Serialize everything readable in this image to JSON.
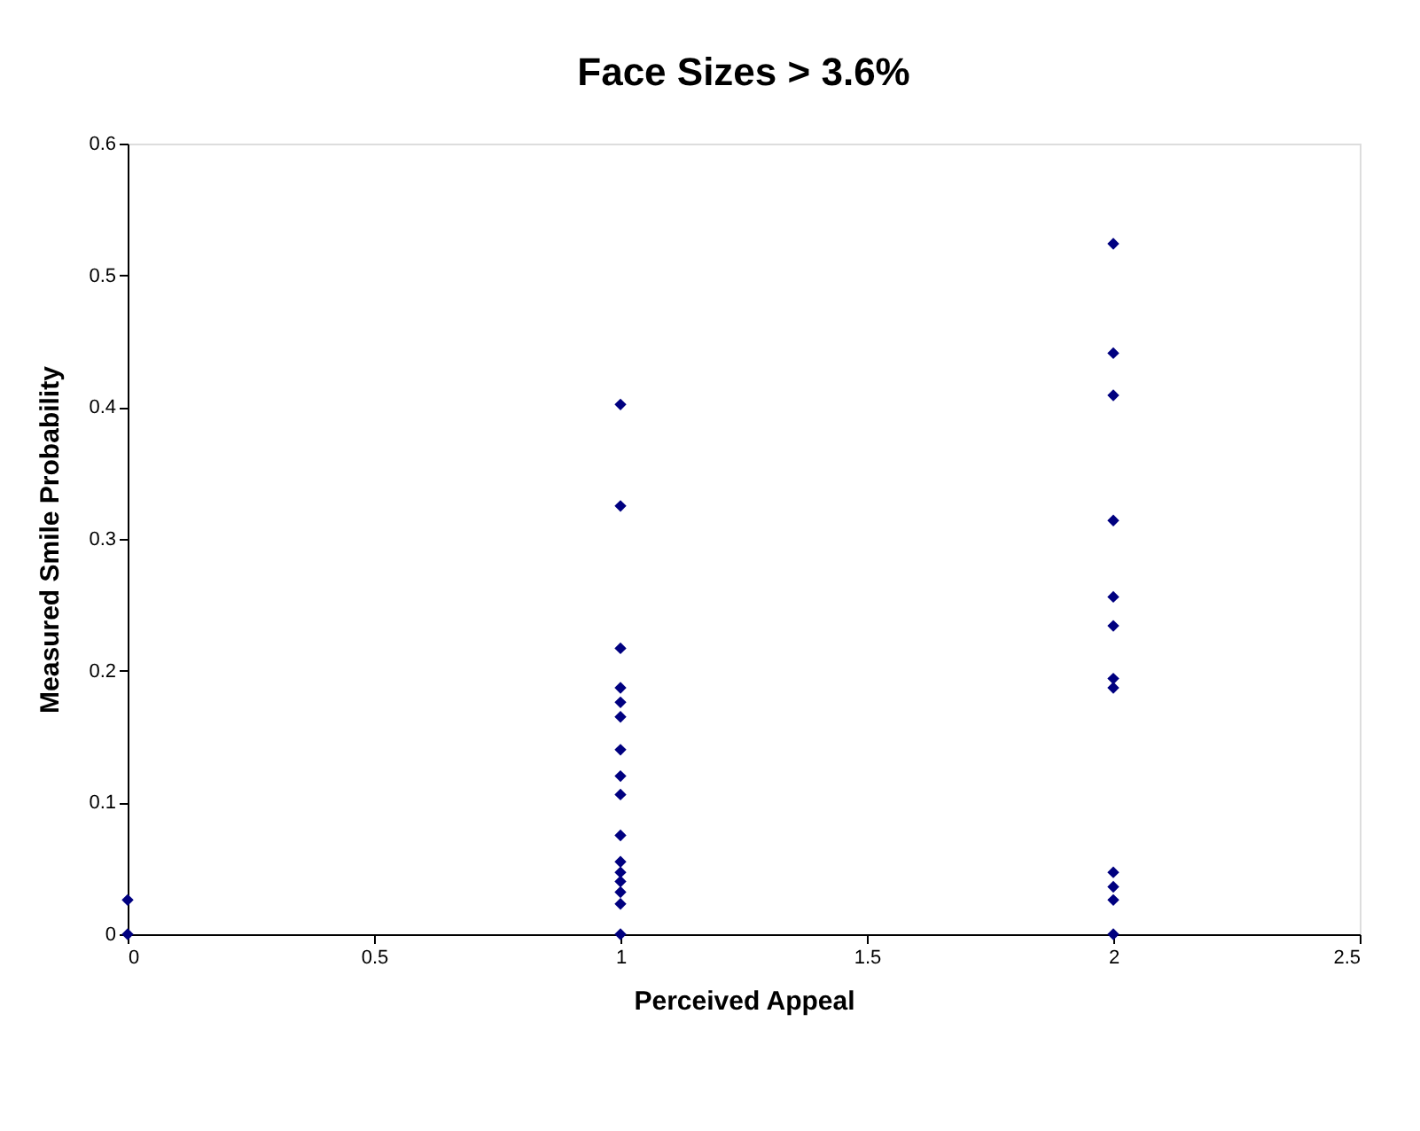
{
  "chart_data": {
    "type": "scatter",
    "title": "Face Sizes > 3.6%",
    "xlabel": "Perceived Appeal",
    "ylabel": "Measured Smile Probability",
    "x": [
      0,
      0,
      1,
      1,
      1,
      1,
      1,
      1,
      1,
      1,
      1,
      1,
      1,
      1,
      1,
      1,
      1,
      1,
      2,
      2,
      2,
      2,
      2,
      2,
      2,
      2,
      2,
      2,
      2,
      2
    ],
    "series": [
      {
        "color": "#000080",
        "values": [
          0,
          0.026,
          0.402,
          0.325,
          0.217,
          0.187,
          0.176,
          0.165,
          0.14,
          0.12,
          0.106,
          0.075,
          0.055,
          0.047,
          0.04,
          0.032,
          0.023,
          0,
          0.524,
          0.441,
          0.409,
          0.314,
          0.256,
          0.234,
          0.194,
          0.187,
          0.047,
          0.036,
          0.026,
          0
        ]
      }
    ],
    "xlim": [
      0,
      2.5
    ],
    "xticks": [
      0,
      0.5,
      1,
      1.5,
      2,
      2.5
    ],
    "ylim": [
      0,
      0.6
    ],
    "yticks": [
      0,
      0.1,
      0.2,
      0.3,
      0.4,
      0.5,
      0.6
    ],
    "marker": "diamond",
    "grid": false,
    "legend": false
  }
}
